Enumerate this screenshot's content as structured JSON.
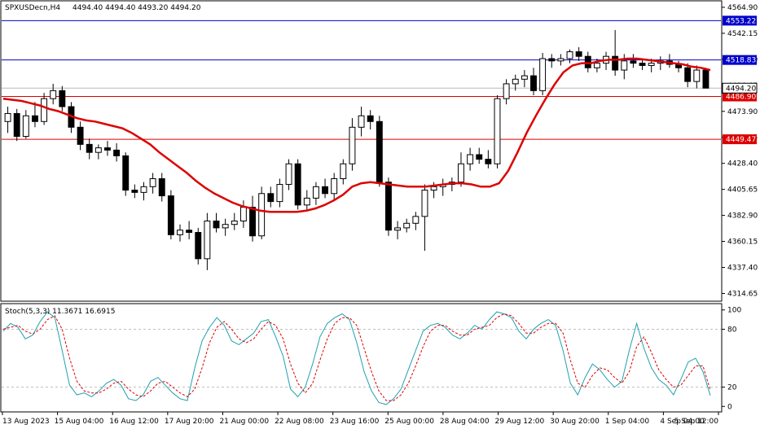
{
  "chart_data": [
    {
      "type": "candlestick",
      "title": "SPXUSDecn,H4",
      "ohlc_header": "4494.40 4494.40 4493.20 4494.20",
      "ylim": [
        4310,
        4567
      ],
      "y_ticks": [
        4564.9,
        4542.15,
        4519.4,
        4496.65,
        4473.9,
        4451.15,
        4428.4,
        4405.65,
        4382.9,
        4360.15,
        4337.4,
        4314.65
      ],
      "y_tick_labels": [
        "4564.90",
        "4542.15",
        "4519.40",
        "4496.65",
        "4473.90",
        "4451.15",
        "4428.40",
        "4405.65",
        "4382.90",
        "4360.15",
        "4337.40",
        "4314.65"
      ],
      "x_tick_labels": [
        "13 Aug 2023",
        "15 Aug 04:00",
        "16 Aug 12:00",
        "17 Aug 20:00",
        "21 Aug 00:00",
        "22 Aug 08:00",
        "23 Aug 16:00",
        "25 Aug 00:00",
        "28 Aug 04:00",
        "29 Aug 12:00",
        "30 Aug 20:00",
        "1 Sep 04:00",
        "4 Sep 04:00",
        "5 Sep 12:00"
      ],
      "horizontal_lines": [
        {
          "value": 4553.22,
          "label": "4553.22",
          "color": "#0000cc"
        },
        {
          "value": 4518.83,
          "label": "4518.83",
          "color": "#0000cc"
        },
        {
          "value": 4486.9,
          "label": "4486.90",
          "color": "#dd0000"
        },
        {
          "value": 4449.47,
          "label": "4449.47",
          "color": "#dd0000"
        }
      ],
      "current_price": {
        "value": 4494.2,
        "label": "4494.20"
      },
      "moving_average_color": "#dd0000",
      "moving_average": [
        4485,
        4484,
        4483,
        4481,
        4479,
        4476,
        4474,
        4471,
        4468,
        4466,
        4465,
        4463,
        4461,
        4459,
        4455,
        4450,
        4445,
        4438,
        4432,
        4426,
        4420,
        4413,
        4407,
        4402,
        4398,
        4394,
        4391,
        4389,
        4387,
        4386,
        4386,
        4386,
        4386,
        4387,
        4389,
        4392,
        4396,
        4401,
        4408,
        4411,
        4412,
        4411,
        4410,
        4409,
        4408,
        4408,
        4408,
        4409,
        4410,
        4411,
        4411,
        4410,
        4408,
        4408,
        4411,
        4422,
        4438,
        4455,
        4470,
        4484,
        4497,
        4508,
        4514,
        4516,
        4516,
        4518,
        4519,
        4519,
        4520,
        4520,
        4519,
        4518,
        4517,
        4516,
        4515,
        4513,
        4512,
        4510
      ],
      "candles": [
        [
          4465,
          4478,
          4455,
          4472
        ],
        [
          4472,
          4476,
          4448,
          4452
        ],
        [
          4452,
          4475,
          4450,
          4470
        ],
        [
          4470,
          4482,
          4460,
          4465
        ],
        [
          4465,
          4490,
          4462,
          4485
        ],
        [
          4485,
          4498,
          4480,
          4492
        ],
        [
          4492,
          4496,
          4474,
          4478
        ],
        [
          4478,
          4482,
          4455,
          4460
        ],
        [
          4460,
          4465,
          4440,
          4445
        ],
        [
          4445,
          4450,
          4432,
          4438
        ],
        [
          4438,
          4445,
          4432,
          4442
        ],
        [
          4442,
          4448,
          4435,
          4440
        ],
        [
          4440,
          4446,
          4430,
          4435
        ],
        [
          4435,
          4438,
          4400,
          4405
        ],
        [
          4405,
          4410,
          4398,
          4403
        ],
        [
          4403,
          4412,
          4396,
          4408
        ],
        [
          4408,
          4420,
          4402,
          4415
        ],
        [
          4415,
          4420,
          4395,
          4400
        ],
        [
          4400,
          4405,
          4362,
          4366
        ],
        [
          4366,
          4375,
          4360,
          4370
        ],
        [
          4370,
          4378,
          4362,
          4368
        ],
        [
          4368,
          4372,
          4340,
          4345
        ],
        [
          4345,
          4385,
          4335,
          4378
        ],
        [
          4378,
          4385,
          4368,
          4372
        ],
        [
          4372,
          4380,
          4365,
          4375
        ],
        [
          4375,
          4385,
          4370,
          4378
        ],
        [
          4378,
          4396,
          4372,
          4390
        ],
        [
          4390,
          4400,
          4360,
          4365
        ],
        [
          4365,
          4408,
          4362,
          4402
        ],
        [
          4402,
          4408,
          4390,
          4395
        ],
        [
          4395,
          4415,
          4390,
          4410
        ],
        [
          4410,
          4432,
          4405,
          4428
        ],
        [
          4428,
          4432,
          4388,
          4392
        ],
        [
          4392,
          4405,
          4388,
          4398
        ],
        [
          4398,
          4412,
          4392,
          4408
        ],
        [
          4408,
          4415,
          4398,
          4402
        ],
        [
          4402,
          4420,
          4396,
          4415
        ],
        [
          4415,
          4432,
          4410,
          4428
        ],
        [
          4428,
          4468,
          4422,
          4460
        ],
        [
          4460,
          4478,
          4452,
          4470
        ],
        [
          4470,
          4475,
          4458,
          4465
        ],
        [
          4465,
          4470,
          4408,
          4412
        ],
        [
          4412,
          4416,
          4365,
          4370
        ],
        [
          4370,
          4378,
          4362,
          4372
        ],
        [
          4372,
          4380,
          4368,
          4376
        ],
        [
          4376,
          4386,
          4370,
          4382
        ],
        [
          4382,
          4410,
          4352,
          4405
        ],
        [
          4405,
          4412,
          4398,
          4408
        ],
        [
          4408,
          4415,
          4400,
          4410
        ],
        [
          4410,
          4416,
          4404,
          4412
        ],
        [
          4412,
          4438,
          4408,
          4428
        ],
        [
          4428,
          4442,
          4422,
          4436
        ],
        [
          4436,
          4442,
          4428,
          4432
        ],
        [
          4432,
          4440,
          4424,
          4428
        ],
        [
          4428,
          4488,
          4424,
          4485
        ],
        [
          4485,
          4502,
          4480,
          4498
        ],
        [
          4498,
          4506,
          4492,
          4502
        ],
        [
          4502,
          4510,
          4495,
          4505
        ],
        [
          4505,
          4512,
          4488,
          4492
        ],
        [
          4492,
          4525,
          4488,
          4520
        ],
        [
          4520,
          4524,
          4512,
          4518
        ],
        [
          4518,
          4524,
          4514,
          4520
        ],
        [
          4520,
          4528,
          4516,
          4526
        ],
        [
          4526,
          4530,
          4518,
          4522
        ],
        [
          4522,
          4526,
          4508,
          4512
        ],
        [
          4512,
          4520,
          4508,
          4516
        ],
        [
          4516,
          4526,
          4510,
          4522
        ],
        [
          4522,
          4545,
          4505,
          4510
        ],
        [
          4510,
          4524,
          4502,
          4518
        ],
        [
          4518,
          4524,
          4512,
          4516
        ],
        [
          4516,
          4520,
          4510,
          4514
        ],
        [
          4514,
          4520,
          4508,
          4516
        ],
        [
          4516,
          4522,
          4510,
          4518
        ],
        [
          4518,
          4524,
          4512,
          4515
        ],
        [
          4515,
          4518,
          4508,
          4512
        ],
        [
          4512,
          4516,
          4495,
          4500
        ],
        [
          4500,
          4514,
          4494,
          4510
        ],
        [
          4510,
          4512,
          4494,
          4494.2
        ]
      ]
    },
    {
      "type": "line",
      "title": "Stoch(5,3,3) 11.3671 16.6915",
      "ylim": [
        -4,
        104
      ],
      "y_ticks": [
        100,
        80,
        20,
        0
      ],
      "y_tick_labels": [
        "100",
        "80",
        "20",
        "0"
      ],
      "levels": [
        80,
        20
      ],
      "series": [
        {
          "color": "#20a0b0",
          "values": [
            78,
            86,
            82,
            70,
            74,
            88,
            98,
            92,
            58,
            22,
            12,
            14,
            10,
            16,
            24,
            28,
            22,
            8,
            6,
            12,
            26,
            30,
            22,
            14,
            8,
            6,
            40,
            68,
            82,
            92,
            84,
            68,
            64,
            70,
            76,
            88,
            90,
            72,
            52,
            18,
            10,
            20,
            44,
            72,
            86,
            92,
            96,
            90,
            66,
            36,
            16,
            4,
            2,
            8,
            18,
            38,
            58,
            78,
            84,
            86,
            82,
            74,
            70,
            76,
            84,
            80,
            90,
            98,
            96,
            92,
            78,
            70,
            80,
            86,
            90,
            84,
            58,
            24,
            12,
            30,
            44,
            38,
            28,
            20,
            26,
            58,
            86,
            60,
            40,
            28,
            22,
            12,
            28,
            46,
            50,
            36,
            11.3671
          ]
        },
        {
          "color": "#dd0000",
          "values": [
            80,
            82,
            84,
            78,
            75,
            80,
            90,
            94,
            80,
            50,
            26,
            16,
            14,
            14,
            18,
            24,
            26,
            18,
            12,
            10,
            16,
            24,
            26,
            20,
            14,
            10,
            18,
            40,
            66,
            82,
            88,
            80,
            70,
            66,
            70,
            80,
            88,
            84,
            70,
            44,
            24,
            14,
            24,
            48,
            70,
            86,
            92,
            92,
            84,
            60,
            36,
            16,
            6,
            6,
            12,
            24,
            42,
            62,
            78,
            84,
            84,
            78,
            74,
            74,
            80,
            82,
            84,
            92,
            96,
            94,
            86,
            76,
            76,
            82,
            86,
            86,
            76,
            48,
            24,
            20,
            32,
            40,
            38,
            30,
            24,
            36,
            62,
            72,
            56,
            38,
            28,
            20,
            22,
            32,
            42,
            42,
            16.6915
          ]
        }
      ]
    }
  ]
}
